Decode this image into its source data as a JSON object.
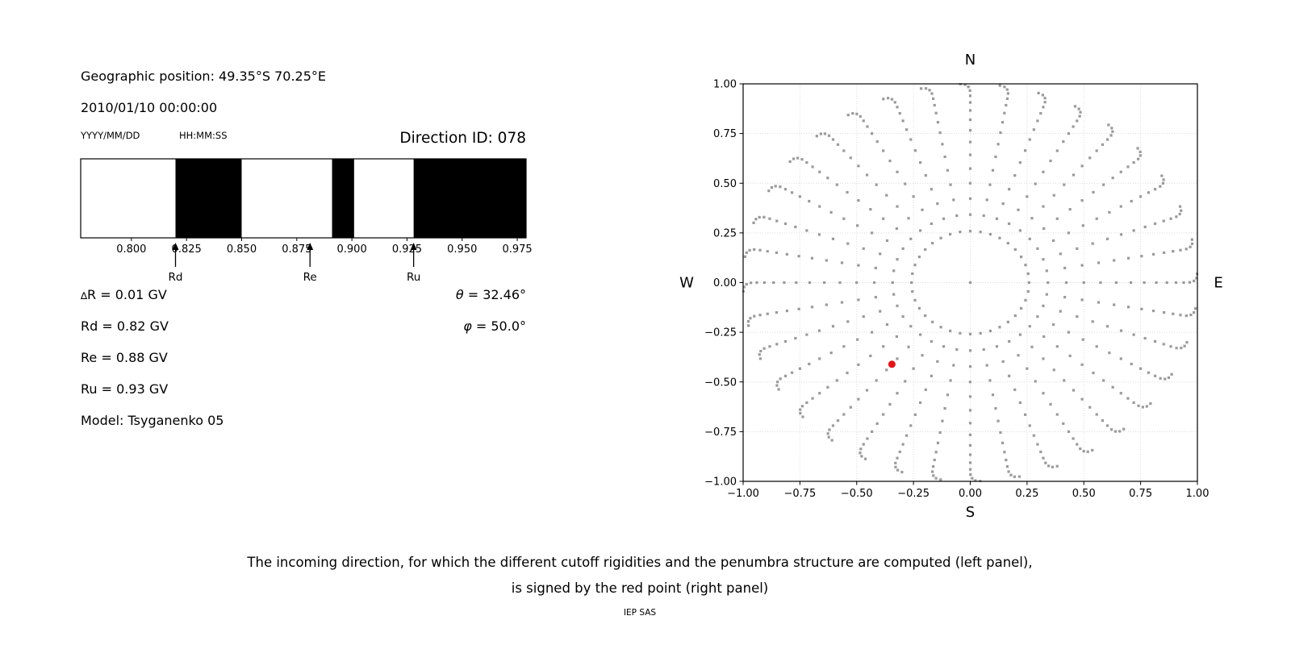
{
  "header": {
    "geo_position": "Geographic position: 49.35°S 70.25°E",
    "datetime": "2010/01/10 00:00:00",
    "date_format_label": "YYYY/MM/DD",
    "time_format_label": "HH:MM:SS",
    "direction_id": "Direction ID: 078"
  },
  "info": {
    "delta_symbol": "∆",
    "delta_rest": "R = 0.01 GV",
    "lines": [
      "Rd = 0.82 GV",
      "Re = 0.88 GV",
      "Ru = 0.93 GV",
      "Model: Tsyganenko 05"
    ],
    "theta_symbol": "θ",
    "theta_rest": " = 32.46°",
    "phi_symbol": "φ",
    "phi_rest": " = 50.0°"
  },
  "caption": {
    "line1": "The incoming direction, for which the different cutoff rigidities and the penumbra structure are computed (left panel),",
    "line2": "is signed by the red point (right panel)",
    "credit": "IEP SAS"
  },
  "chart_data": [
    {
      "type": "bar",
      "name": "penumbra-strip",
      "description": "Penumbra structure: black bands = rigidity intervals, white elsewhere",
      "xlim": [
        0.777,
        0.979
      ],
      "xticks": [
        0.8,
        0.825,
        0.85,
        0.875,
        0.9,
        0.925,
        0.95,
        0.975
      ],
      "xtick_labels": [
        "0.800",
        "0.825",
        "0.850",
        "0.875",
        "0.900",
        "0.925",
        "0.950",
        "0.975"
      ],
      "black_bands": [
        [
          0.82,
          0.85
        ],
        [
          0.891,
          0.901
        ],
        [
          0.928,
          0.979
        ]
      ],
      "arrows": [
        {
          "label": "Rd",
          "x": 0.82
        },
        {
          "label": "Re",
          "x": 0.881
        },
        {
          "label": "Ru",
          "x": 0.928
        }
      ],
      "band_color": "#000000",
      "frame_color": "#000000",
      "grid": false
    },
    {
      "type": "scatter",
      "name": "sky-direction-map",
      "description": "Grid of scanned incoming directions; radius = sin(zenith angle), rays every 10° of azimuth; red point marks Direction ID 078",
      "xlim": [
        -1.0,
        1.0
      ],
      "ylim": [
        -1.0,
        1.0
      ],
      "xticks": [
        -1.0,
        -0.75,
        -0.5,
        -0.25,
        0.0,
        0.25,
        0.5,
        0.75,
        1.0
      ],
      "yticks": [
        -1.0,
        -0.75,
        -0.5,
        -0.25,
        0.0,
        0.25,
        0.5,
        0.75,
        1.0
      ],
      "xtick_labels": [
        "−1.00",
        "−0.75",
        "−0.50",
        "−0.25",
        "0.00",
        "0.25",
        "0.50",
        "0.75",
        "1.00"
      ],
      "ytick_labels": [
        "−1.00",
        "−0.75",
        "−0.50",
        "−0.25",
        "0.00",
        "0.25",
        "0.50",
        "0.75",
        "1.00"
      ],
      "grid": true,
      "compass_labels": {
        "top": "N",
        "bottom": "S",
        "left": "W",
        "right": "E"
      },
      "dot_pattern": {
        "azimuth_start_deg": 0,
        "azimuth_step_deg": 10,
        "azimuth_count": 36,
        "zenith_min_deg": 15,
        "zenith_max_deg": 90,
        "zenith_step_deg": 5,
        "radius_rule": "r = sin(zenith)",
        "center_dot": true,
        "tip_curl_deg": -2.5,
        "tip_curl_start_deg": 72
      },
      "red_point": {
        "x": -0.345,
        "y": -0.411,
        "theta_deg": 32.46,
        "phi_deg": 50.0,
        "azimuth_deg": 220
      },
      "dot_color": "#9a9a9a",
      "red_color": "#e81215",
      "grid_color": "#d9d9d9",
      "frame_color": "#000000"
    }
  ]
}
